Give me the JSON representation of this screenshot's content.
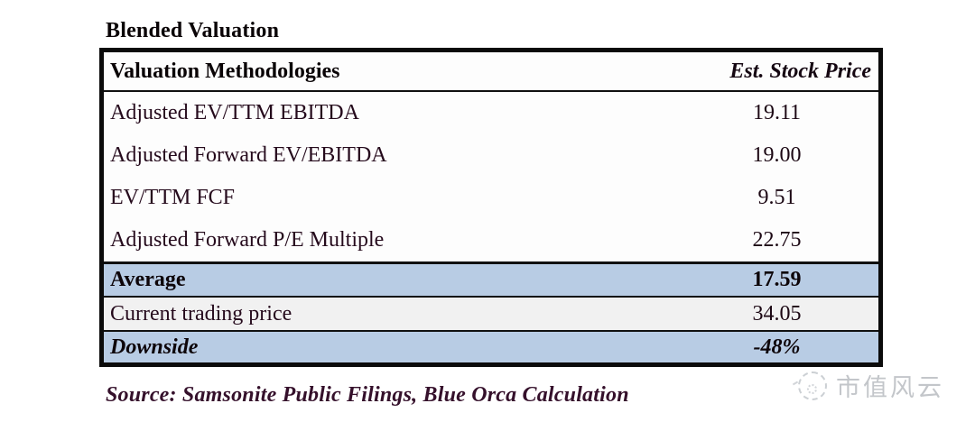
{
  "title": "Blended Valuation",
  "table": {
    "header": {
      "methodology_label": "Valuation Methodologies",
      "price_label": "Est. Stock Price"
    },
    "rows": [
      {
        "label": "Adjusted EV/TTM EBITDA",
        "value": "19.11"
      },
      {
        "label": "Adjusted Forward EV/EBITDA",
        "value": "19.00"
      },
      {
        "label": "EV/TTM FCF",
        "value": "9.51"
      },
      {
        "label": "Adjusted Forward P/E Multiple",
        "value": "22.75"
      }
    ],
    "summary": {
      "average": {
        "label": "Average",
        "value": "17.59"
      },
      "current": {
        "label": "Current trading price",
        "value": "34.05"
      },
      "downside": {
        "label": "Downside",
        "value": "-48%"
      }
    }
  },
  "source": "Source: Samsonite Public Filings, Blue Orca Calculation",
  "watermark": {
    "logo": "whirlwind-logo",
    "text": "市值风云"
  },
  "colors": {
    "highlight_blue": "#b8cce4",
    "neutral_row_gray": "#f1f1f1",
    "table_border_black": "#0b0b0b",
    "body_text": "#250a1c",
    "source_text": "#35102b",
    "watermark_gray": "#c3c6ca"
  }
}
